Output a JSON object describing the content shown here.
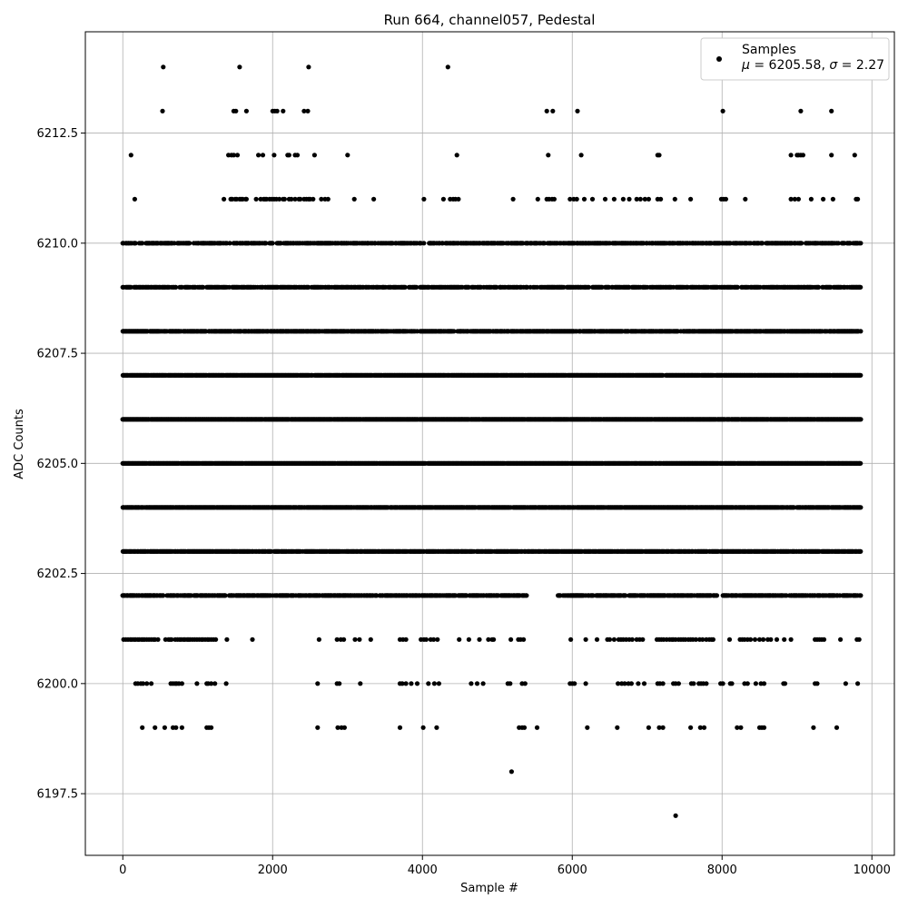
{
  "chart_data": {
    "type": "scatter",
    "title": "Run 664, channel057, Pedestal",
    "xlabel": "Sample #",
    "ylabel": "ADC Counts",
    "xlim": [
      -500,
      10300
    ],
    "ylim": [
      6196.1,
      6214.8
    ],
    "xticks": [
      0,
      2000,
      4000,
      6000,
      8000,
      10000
    ],
    "xtick_labels": [
      "0",
      "2000",
      "4000",
      "6000",
      "8000",
      "10000"
    ],
    "yticks": [
      6197.5,
      6200.0,
      6202.5,
      6205.0,
      6207.5,
      6210.0,
      6212.5
    ],
    "ytick_labels": [
      "6197.5",
      "6200.0",
      "6202.5",
      "6205.0",
      "6207.5",
      "6210.0",
      "6212.5"
    ],
    "grid": true,
    "legend_position": "top-right",
    "legend": {
      "label": "Samples",
      "stats_prefix_mu": "μ",
      "stats_value_mu": " = 6205.58, ",
      "stats_prefix_sigma": "σ",
      "stats_value_sigma": " = 2.27"
    },
    "marker_color": "#000000",
    "series": [
      {
        "name": "Samples",
        "levels": [
          {
            "y": 6214,
            "x": [
              540,
              1560,
              2480,
              4340
            ]
          },
          {
            "y": 6213,
            "x": [
              530,
              1480,
              1510,
              1650,
              2000,
              2030,
              2060,
              2140,
              2420,
              2470,
              5660,
              5740,
              6070,
              8010,
              9050,
              9460
            ]
          },
          {
            "y": 6212,
            "x": [
              110,
              1410,
              1450,
              1480,
              1530,
              1810,
              1870,
              2020,
              2200,
              2220,
              2300,
              2330,
              2560,
              3000,
              4460,
              5680,
              6120,
              7140,
              7160,
              8920,
              9000,
              9020,
              9050,
              9080,
              9460,
              9770
            ]
          },
          {
            "y": 6211,
            "x": [
              160,
              1350,
              1440,
              1460,
              1500,
              1520,
              1560,
              1580,
              1600,
              1640,
              1650,
              1780,
              1840,
              1880,
              1900,
              1920,
              1960,
              1990,
              2020,
              2050,
              2090,
              2140,
              2160,
              2220,
              2250,
              2300,
              2350,
              2370,
              2420,
              2450,
              2480,
              2500,
              2540,
              2650,
              2700,
              2740,
              3090,
              3350,
              4020,
              4280,
              4370,
              4410,
              4440,
              4480,
              5210,
              5540,
              5660,
              5690,
              5730,
              5760,
              5970,
              6020,
              6060,
              6160,
              6270,
              6440,
              6560,
              6680,
              6760,
              6860,
              6910,
              6970,
              7020,
              7140,
              7180,
              7370,
              7580,
              7990,
              8020,
              8050,
              8310,
              8920,
              8970,
              9020,
              9190,
              9350,
              9480,
              9790,
              9810
            ]
          },
          {
            "y": 6210,
            "range": [
              0,
              9850
            ],
            "density": 0.62,
            "seed": 11
          },
          {
            "y": 6209,
            "range": [
              0,
              9850
            ],
            "density": 0.7,
            "seed": 23
          },
          {
            "y": 6208,
            "range": [
              0,
              9850
            ],
            "density": 0.82,
            "seed": 37
          },
          {
            "y": 6207,
            "range": [
              0,
              9850
            ],
            "density": 0.96,
            "seed": 41
          },
          {
            "y": 6206,
            "range": [
              0,
              9850
            ],
            "density": 0.98,
            "seed": 53
          },
          {
            "y": 6205,
            "range": [
              0,
              9850
            ],
            "density": 0.97,
            "seed": 67
          },
          {
            "y": 6204,
            "range": [
              0,
              9850
            ],
            "density": 0.94,
            "seed": 71
          },
          {
            "y": 6203,
            "range": [
              0,
              9850
            ],
            "density": 0.86,
            "seed": 83
          },
          {
            "y": 6202,
            "range": [
              0,
              9850
            ],
            "density": 0.72,
            "seed": 97,
            "gap": [
              5400,
              5800
            ]
          },
          {
            "y": 6201,
            "x": [
              10,
              40,
              70,
              100,
              120,
              150,
              170,
              200,
              220,
              250,
              270,
              290,
              320,
              350,
              380,
              410,
              430,
              470,
              570,
              610,
              630,
              650,
              700,
              730,
              760,
              780,
              810,
              830,
              860,
              880,
              900,
              930,
              960,
              990,
              1020,
              1050,
              1070,
              1100,
              1130,
              1150,
              1180,
              1210,
              1240,
              1390,
              1730,
              2620,
              2860,
              2910,
              2950,
              3100,
              3160,
              3310,
              3700,
              3740,
              3780,
              3980,
              4020,
              4050,
              4110,
              4150,
              4200,
              4490,
              4620,
              4760,
              4880,
              4930,
              4950,
              5180,
              5280,
              5310,
              5350,
              5980,
              6180,
              6330,
              6470,
              6500,
              6560,
              6620,
              6650,
              6680,
              6720,
              6760,
              6800,
              6860,
              6900,
              6940,
              7130,
              7160,
              7190,
              7220,
              7260,
              7300,
              7330,
              7350,
              7380,
              7420,
              7450,
              7480,
              7510,
              7550,
              7580,
              7610,
              7650,
              7700,
              7740,
              7790,
              7830,
              7860,
              7880,
              8100,
              8240,
              8270,
              8300,
              8340,
              8380,
              8440,
              8500,
              8550,
              8610,
              8650,
              8730,
              8830,
              8920,
              9240,
              9270,
              9300,
              9330,
              9360,
              9580,
              9800,
              9830
            ]
          },
          {
            "y": 6200,
            "x": [
              170,
              200,
              240,
              270,
              320,
              380,
              640,
              670,
              700,
              720,
              750,
              790,
              990,
              1120,
              1140,
              1180,
              1230,
              1380,
              2600,
              2860,
              2890,
              3170,
              3700,
              3730,
              3780,
              3850,
              3930,
              4080,
              4160,
              4220,
              4650,
              4730,
              4810,
              5140,
              5170,
              5330,
              5370,
              5970,
              6000,
              6030,
              6180,
              6610,
              6660,
              6700,
              6750,
              6790,
              6880,
              6960,
              7140,
              7170,
              7210,
              7350,
              7380,
              7420,
              7590,
              7620,
              7690,
              7720,
              7750,
              7790,
              7980,
              8010,
              8110,
              8130,
              8300,
              8340,
              8450,
              8520,
              8560,
              8820,
              8840,
              9240,
              9270,
              9650,
              9810
            ]
          },
          {
            "y": 6199,
            "x": [
              260,
              430,
              560,
              670,
              710,
              790,
              1120,
              1150,
              1180,
              2600,
              2870,
              2920,
              2960,
              3700,
              4010,
              4190,
              5290,
              5330,
              5360,
              5530,
              6200,
              6600,
              7020,
              7160,
              7210,
              7580,
              7710,
              7760,
              8200,
              8250,
              8500,
              8530,
              8560,
              9220,
              9530
            ]
          },
          {
            "y": 6198,
            "x": [
              5190
            ]
          },
          {
            "y": 6197,
            "x": [
              7380
            ]
          }
        ]
      }
    ]
  }
}
